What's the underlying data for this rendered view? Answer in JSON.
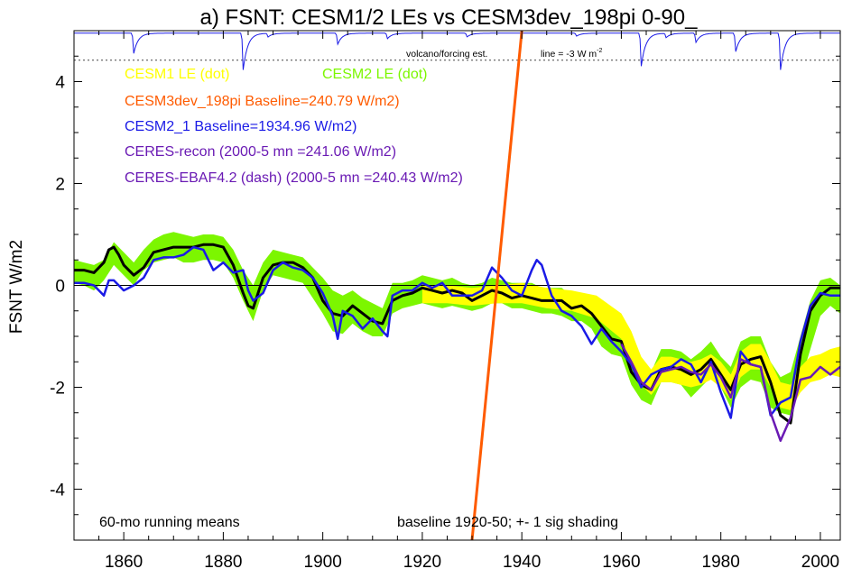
{
  "chart_data": {
    "type": "line",
    "title": "a) FSNT: CESM1/2 LEs vs CESM3dev_198pi 0-90_",
    "ylabel": "FSNT W/m2",
    "xlabel": "",
    "xlim": [
      1850,
      2004
    ],
    "ylim": [
      -5,
      5
    ],
    "x_ticks": [
      1860,
      1880,
      1900,
      1920,
      1940,
      1960,
      1980,
      2000
    ],
    "y_ticks": [
      4,
      2,
      0,
      -2,
      -4
    ],
    "y_tick_labels": [
      "4",
      "2",
      "0",
      "-2",
      "-4"
    ],
    "grid": false,
    "zero_line": true,
    "legend_position": "top-left",
    "legend": [
      {
        "label": "CESM1 LE (dot)",
        "color": "#ffff00"
      },
      {
        "label": "CESM2 LE (dot)",
        "color": "#7cf600"
      },
      {
        "label": "CESM3dev_198pi Baseline=240.79 W/m2)",
        "color": "#ff5b00"
      },
      {
        "label": "CESM2_1 Baseline=1934.96 W/m2)",
        "color": "#1a1ae6"
      },
      {
        "label": "CERES-recon (2000-5 mn =241.06 W/m2)",
        "color": "#6a1ab4"
      },
      {
        "label": "CERES-EBAF4.2 (dash) (2000-5 mn =240.43 W/m2)",
        "color": "#6a1ab4"
      }
    ],
    "annotations": {
      "volcano_label": "volcano/forcing est.",
      "line_label": "line = -3 W m",
      "line_label_sup": "-2",
      "running_means": "60-mo running means",
      "baseline_note": "baseline 1920-50; +- 1 sig shading"
    },
    "volcano_reference_y": 4.42,
    "volcano_eruptions": [
      {
        "year": 1862,
        "depth": 0.55
      },
      {
        "year": 1884,
        "depth": 1.0
      },
      {
        "year": 1889,
        "depth": 0.1
      },
      {
        "year": 1903,
        "depth": 0.3
      },
      {
        "year": 1913,
        "depth": 0.15
      },
      {
        "year": 1929,
        "depth": 0.1
      },
      {
        "year": 1951,
        "depth": 0.08
      },
      {
        "year": 1964,
        "depth": 0.9
      },
      {
        "year": 1969,
        "depth": 0.12
      },
      {
        "year": 1975,
        "depth": 0.25
      },
      {
        "year": 1983,
        "depth": 0.5
      },
      {
        "year": 1992,
        "depth": 1.0
      }
    ],
    "series": [
      {
        "name": "CESM2 LE (dot)",
        "color": "#7cf600",
        "kind": "band",
        "x": [
          1850,
          1852,
          1854,
          1856,
          1858,
          1860,
          1862,
          1864,
          1866,
          1868,
          1870,
          1872,
          1874,
          1876,
          1878,
          1880,
          1882,
          1884,
          1886,
          1888,
          1890,
          1892,
          1894,
          1896,
          1898,
          1900,
          1902,
          1904,
          1906,
          1908,
          1910,
          1912,
          1914,
          1916,
          1918,
          1920,
          1922,
          1924,
          1926,
          1928,
          1930,
          1932,
          1934,
          1936,
          1938,
          1940,
          1942,
          1944,
          1946,
          1948,
          1950,
          1952,
          1954,
          1956,
          1958,
          1960,
          1962,
          1964,
          1966,
          1968,
          1970,
          1972,
          1974,
          1976,
          1978,
          1980,
          1982,
          1984,
          1986,
          1988,
          1990,
          1992,
          1994,
          1996,
          1998,
          2000,
          2002,
          2004
        ],
        "upper": [
          0.5,
          0.45,
          0.4,
          0.5,
          0.85,
          0.65,
          0.45,
          0.7,
          0.9,
          1.0,
          1.05,
          1.0,
          0.95,
          1.0,
          1.0,
          0.95,
          0.7,
          0.3,
          0.0,
          0.45,
          0.7,
          0.65,
          0.6,
          0.55,
          0.35,
          0.15,
          -0.1,
          -0.2,
          -0.1,
          -0.25,
          -0.35,
          -0.45,
          0.05,
          0.05,
          0.1,
          0.2,
          0.15,
          0.1,
          0.15,
          0.05,
          0.0,
          0.05,
          0.15,
          0.1,
          0.05,
          0.05,
          0.05,
          -0.05,
          -0.05,
          -0.05,
          -0.2,
          -0.15,
          -0.25,
          -0.55,
          -0.75,
          -0.75,
          -1.3,
          -1.55,
          -1.7,
          -1.25,
          -1.25,
          -1.3,
          -1.45,
          -1.3,
          -1.1,
          -1.4,
          -1.6,
          -1.1,
          -1.0,
          -1.0,
          -1.5,
          -1.8,
          -1.7,
          -1.0,
          -0.3,
          0.1,
          0.15,
          0.0
        ],
        "lower": [
          0.05,
          0.0,
          -0.1,
          0.1,
          0.4,
          0.2,
          0.0,
          0.3,
          0.45,
          0.5,
          0.55,
          0.45,
          0.45,
          0.5,
          0.5,
          0.45,
          0.15,
          -0.3,
          -0.7,
          -0.1,
          0.2,
          0.15,
          0.1,
          0.05,
          -0.25,
          -0.55,
          -0.9,
          -0.95,
          -0.75,
          -0.9,
          -1.0,
          -1.0,
          -0.55,
          -0.45,
          -0.4,
          -0.35,
          -0.4,
          -0.45,
          -0.4,
          -0.45,
          -0.5,
          -0.45,
          -0.35,
          -0.35,
          -0.45,
          -0.45,
          -0.5,
          -0.55,
          -0.55,
          -0.6,
          -0.7,
          -0.7,
          -0.85,
          -1.2,
          -1.35,
          -1.4,
          -1.95,
          -2.25,
          -2.35,
          -1.9,
          -1.9,
          -1.95,
          -2.2,
          -2.0,
          -1.8,
          -2.0,
          -2.4,
          -2.0,
          -1.85,
          -1.9,
          -2.4,
          -2.5,
          -2.55,
          -1.9,
          -1.25,
          -0.6,
          -0.4,
          -0.55
        ]
      },
      {
        "name": "CESM1 LE (dot)",
        "color": "#ffff00",
        "kind": "band",
        "x": [
          1920,
          1925,
          1930,
          1935,
          1940,
          1945,
          1950,
          1955,
          1960,
          1962,
          1964,
          1966,
          1968,
          1970,
          1972,
          1974,
          1976,
          1978,
          1980,
          1982,
          1984,
          1986,
          1988,
          1990,
          1992,
          1994,
          1996,
          1998,
          2000,
          2002,
          2004
        ],
        "upper": [
          0.0,
          0.0,
          -0.05,
          0.0,
          0.05,
          -0.05,
          -0.1,
          -0.2,
          -0.55,
          -0.9,
          -1.4,
          -1.65,
          -1.4,
          -1.4,
          -1.45,
          -1.5,
          -1.45,
          -1.35,
          -1.5,
          -1.75,
          -1.3,
          -1.15,
          -1.15,
          -1.5,
          -1.9,
          -1.95,
          -1.6,
          -1.4,
          -1.35,
          -1.25,
          -1.2
        ],
        "lower": [
          -0.35,
          -0.35,
          -0.4,
          -0.35,
          -0.35,
          -0.45,
          -0.5,
          -0.65,
          -1.05,
          -1.55,
          -1.95,
          -2.15,
          -1.9,
          -1.9,
          -1.95,
          -2.0,
          -1.95,
          -1.85,
          -2.0,
          -2.25,
          -1.8,
          -1.65,
          -1.65,
          -2.0,
          -2.4,
          -2.45,
          -2.1,
          -1.9,
          -1.85,
          -1.75,
          -1.8
        ]
      },
      {
        "name": "CESM2 LE (dot)",
        "color": "#000000",
        "kind": "line",
        "x": [
          1850,
          1852,
          1854,
          1856,
          1857,
          1858,
          1859,
          1860,
          1862,
          1864,
          1866,
          1868,
          1870,
          1872,
          1874,
          1876,
          1878,
          1880,
          1882,
          1884,
          1885,
          1886,
          1888,
          1890,
          1892,
          1894,
          1896,
          1898,
          1900,
          1902,
          1904,
          1906,
          1908,
          1910,
          1912,
          1914,
          1916,
          1918,
          1920,
          1922,
          1924,
          1926,
          1928,
          1930,
          1932,
          1934,
          1936,
          1938,
          1940,
          1942,
          1944,
          1946,
          1948,
          1950,
          1952,
          1954,
          1956,
          1958,
          1960,
          1962,
          1964,
          1966,
          1968,
          1970,
          1972,
          1974,
          1976,
          1978,
          1980,
          1982,
          1984,
          1986,
          1988,
          1990,
          1992,
          1994,
          1996,
          1998,
          2000,
          2002,
          2004
        ],
        "y": [
          0.3,
          0.3,
          0.25,
          0.45,
          0.7,
          0.75,
          0.6,
          0.4,
          0.2,
          0.35,
          0.65,
          0.7,
          0.75,
          0.75,
          0.75,
          0.8,
          0.8,
          0.75,
          0.4,
          -0.15,
          -0.4,
          -0.45,
          0.15,
          0.4,
          0.45,
          0.45,
          0.35,
          0.15,
          -0.3,
          -0.55,
          -0.6,
          -0.4,
          -0.55,
          -0.7,
          -0.75,
          -0.3,
          -0.2,
          -0.15,
          -0.05,
          -0.1,
          -0.15,
          -0.1,
          -0.15,
          -0.3,
          -0.2,
          -0.1,
          -0.15,
          -0.25,
          -0.2,
          -0.25,
          -0.3,
          -0.3,
          -0.3,
          -0.45,
          -0.4,
          -0.55,
          -0.8,
          -1.05,
          -1.1,
          -1.7,
          -1.95,
          -2.05,
          -1.65,
          -1.6,
          -1.65,
          -1.75,
          -1.65,
          -1.45,
          -1.75,
          -2.05,
          -1.55,
          -1.45,
          -1.4,
          -1.9,
          -2.55,
          -2.7,
          -1.35,
          -0.5,
          -0.2,
          -0.05,
          -0.05
        ]
      },
      {
        "name": "CESM2_1 Baseline=1934.96 W/m2)",
        "color": "#1a1ae6",
        "kind": "line",
        "x": [
          1850,
          1852,
          1854,
          1856,
          1857,
          1858,
          1860,
          1862,
          1864,
          1866,
          1868,
          1870,
          1872,
          1874,
          1876,
          1878,
          1880,
          1882,
          1884,
          1885,
          1886,
          1888,
          1890,
          1892,
          1894,
          1896,
          1898,
          1900,
          1902,
          1903,
          1904,
          1906,
          1908,
          1910,
          1912,
          1913,
          1914,
          1916,
          1918,
          1920,
          1922,
          1924,
          1926,
          1928,
          1930,
          1932,
          1934,
          1936,
          1938,
          1940,
          1942,
          1943,
          1944,
          1946,
          1948,
          1950,
          1952,
          1954,
          1956,
          1958,
          1960,
          1962,
          1964,
          1966,
          1968,
          1970,
          1972,
          1974,
          1976,
          1978,
          1980,
          1982,
          1984,
          1986,
          1988,
          1990,
          1992,
          1994,
          1996,
          1998,
          2000,
          2002,
          2004
        ],
        "y": [
          0.05,
          0.05,
          0.0,
          -0.2,
          0.1,
          0.1,
          -0.1,
          0.0,
          0.15,
          0.5,
          0.55,
          0.55,
          0.6,
          0.75,
          0.7,
          0.3,
          0.45,
          0.25,
          0.3,
          -0.1,
          -0.3,
          -0.15,
          0.3,
          0.45,
          0.35,
          0.3,
          0.15,
          -0.15,
          -0.6,
          -1.05,
          -0.5,
          -0.6,
          -0.85,
          -0.65,
          -0.9,
          -1.0,
          -0.2,
          -0.1,
          -0.1,
          0.05,
          -0.05,
          0.05,
          -0.2,
          -0.2,
          -0.2,
          -0.1,
          0.35,
          0.15,
          -0.1,
          -0.2,
          0.3,
          0.5,
          0.4,
          -0.2,
          -0.5,
          -0.6,
          -0.8,
          -1.15,
          -0.85,
          -1.1,
          -1.3,
          -1.55,
          -2.0,
          -1.75,
          -1.65,
          -1.6,
          -1.45,
          -1.55,
          -1.9,
          -1.5,
          -2.1,
          -2.6,
          -1.3,
          -1.55,
          -1.6,
          -2.55,
          -2.3,
          -2.2,
          -1.1,
          -0.4,
          -0.15,
          -0.2,
          -0.2
        ]
      },
      {
        "name": "CERES-recon (2000-5 mn =241.06 W/m2)",
        "color": "#6a1ab4",
        "kind": "line",
        "x": [
          1960,
          1962,
          1964,
          1966,
          1968,
          1970,
          1972,
          1974,
          1976,
          1978,
          1980,
          1982,
          1984,
          1986,
          1988,
          1990,
          1992,
          1994,
          1996,
          1998,
          2000,
          2002,
          2004
        ],
        "y": [
          -1.15,
          -1.5,
          -1.9,
          -2.05,
          -1.7,
          -1.65,
          -1.6,
          -1.7,
          -1.75,
          -1.55,
          -1.8,
          -2.2,
          -1.45,
          -1.55,
          -1.6,
          -2.5,
          -3.05,
          -2.6,
          -1.85,
          -1.8,
          -1.6,
          -1.75,
          -1.6
        ]
      },
      {
        "name": "CESM3dev_198pi Baseline=240.79 W/m2)",
        "color": "#ff5b00",
        "kind": "line",
        "x": [
          1930,
          1940
        ],
        "y": [
          -5.0,
          5.0
        ]
      }
    ]
  }
}
